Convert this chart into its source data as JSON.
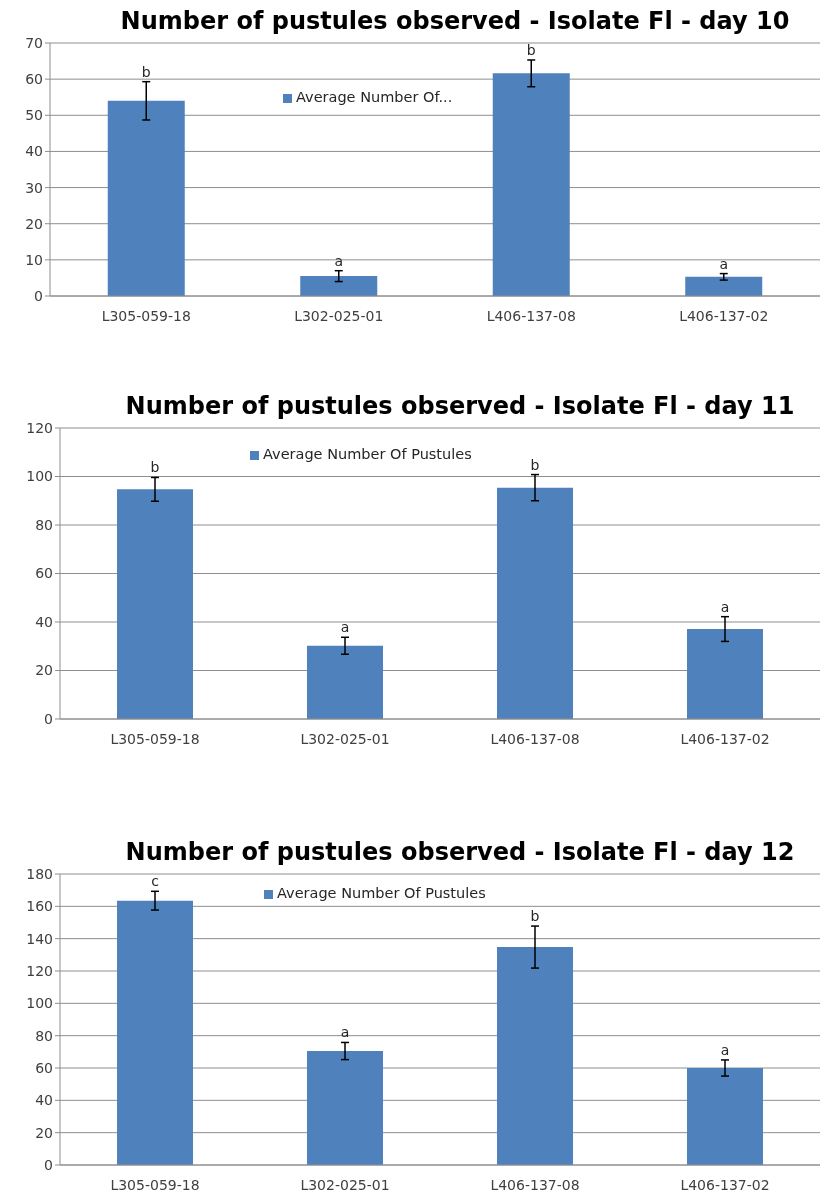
{
  "chart_data": [
    {
      "type": "bar",
      "title": "Number of pustules observed - Isolate Fl - day 10",
      "categories": [
        "L305-059-18",
        "L302-025-01",
        "L406-137-08",
        "L406-137-02"
      ],
      "series": [
        {
          "name": "Average Number Of...",
          "color": "#4f81bd",
          "values": [
            54,
            5.5,
            61.6,
            5.3
          ],
          "errors": [
            5.3,
            1.5,
            3.7,
            0.9
          ]
        }
      ],
      "ylim": [
        0,
        70
      ],
      "yticks": [
        0,
        10,
        20,
        30,
        40,
        50,
        60,
        70
      ],
      "grid": "y",
      "legend": "top",
      "annotations": [
        {
          "text": "b",
          "x": "L305-059-18",
          "y": 54
        },
        {
          "text": "a",
          "x": "L302-025-01",
          "y": 5.5
        },
        {
          "text": "b",
          "x": "L406-137-08",
          "y": 61.6
        },
        {
          "text": "a",
          "x": "L406-137-02",
          "y": 5.3
        }
      ]
    },
    {
      "type": "bar",
      "title": "Number of pustules observed - Isolate Fl - day 11",
      "categories": [
        "L305-059-18",
        "L302-025-01",
        "L406-137-08",
        "L406-137-02"
      ],
      "series": [
        {
          "name": "Average Number Of Pustules",
          "color": "#4f81bd",
          "values": [
            94.7,
            30.2,
            95.4,
            37.1
          ],
          "errors": [
            4.9,
            3.5,
            5.4,
            5.1
          ]
        }
      ],
      "ylim": [
        0,
        120
      ],
      "yticks": [
        0,
        20,
        40,
        60,
        80,
        100,
        120
      ],
      "grid": "y",
      "legend": "top",
      "annotations": [
        {
          "text": "b",
          "x": "L305-059-18",
          "y": 94.7
        },
        {
          "text": "a",
          "x": "L302-025-01",
          "y": 30.2
        },
        {
          "text": "b",
          "x": "L406-137-08",
          "y": 95.4
        },
        {
          "text": "a",
          "x": "L406-137-02",
          "y": 37.1
        }
      ]
    },
    {
      "type": "bar",
      "title": "Number of pustules observed - Isolate Fl - day 12",
      "categories": [
        "L305-059-18",
        "L302-025-01",
        "L406-137-08",
        "L406-137-02"
      ],
      "series": [
        {
          "name": "Average Number Of Pustules",
          "color": "#4f81bd",
          "values": [
            163.5,
            70.5,
            134.8,
            60
          ],
          "errors": [
            5.8,
            5.3,
            13,
            5
          ]
        }
      ],
      "ylim": [
        0,
        180
      ],
      "yticks": [
        0,
        20,
        40,
        60,
        80,
        100,
        120,
        140,
        160,
        180
      ],
      "grid": "y",
      "legend": "top",
      "annotations": [
        {
          "text": "c",
          "x": "L305-059-18",
          "y": 163.5
        },
        {
          "text": "a",
          "x": "L302-025-01",
          "y": 70.5
        },
        {
          "text": "b",
          "x": "L406-137-08",
          "y": 134.8
        },
        {
          "text": "a",
          "x": "L406-137-02",
          "y": 60
        }
      ]
    }
  ]
}
